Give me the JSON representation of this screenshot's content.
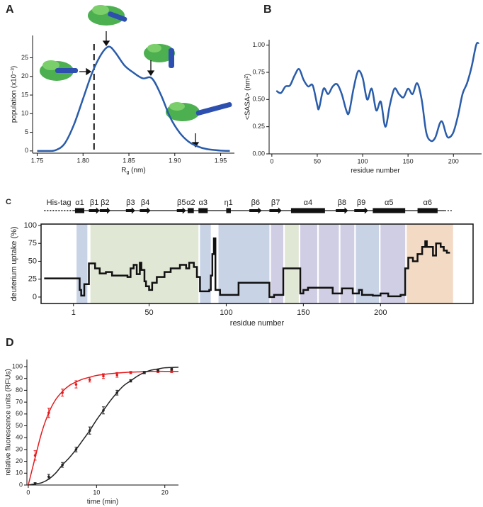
{
  "chart_data": [
    {
      "panel": "A",
      "type": "line",
      "color": "#2a5caa",
      "xlabel": {
        "main": "R",
        "sub": "g",
        "rest": " (nm)"
      },
      "ylabel": "population (x10⁻³)",
      "x": [
        1.75,
        1.76,
        1.77,
        1.78,
        1.79,
        1.8,
        1.81,
        1.82,
        1.828,
        1.835,
        1.845,
        1.855,
        1.865,
        1.875,
        1.885,
        1.895,
        1.905,
        1.915,
        1.925,
        1.935,
        1.95,
        1.96
      ],
      "values": [
        0,
        0,
        0.2,
        2,
        7,
        14,
        21,
        26,
        28,
        26.5,
        23,
        21,
        19.5,
        19.5,
        15,
        9,
        5,
        2.5,
        1.2,
        0.5,
        0.1,
        0
      ],
      "vline": 1.812,
      "xlim": [
        1.745,
        1.965
      ],
      "xticks": [
        1.75,
        {
          "value": 1.8,
          "label": "1.80"
        },
        1.85,
        {
          "value": 1.9,
          "label": "1.90"
        },
        1.95
      ],
      "ylim": [
        -0.6,
        31
      ],
      "yticks": [
        0,
        5,
        10,
        15,
        20,
        25
      ]
    },
    {
      "panel": "B",
      "type": "line",
      "color": "#2a5caa",
      "xlabel": "residue number",
      "ylabel": "<SASA> (nm²)",
      "x": [
        5,
        10,
        15,
        20,
        25,
        30,
        35,
        40,
        45,
        50,
        52,
        57,
        62,
        67,
        72,
        77,
        82,
        85,
        90,
        95,
        100,
        105,
        110,
        115,
        120,
        125,
        130,
        135,
        140,
        145,
        150,
        155,
        160,
        165,
        170,
        175,
        180,
        185,
        188,
        192,
        195,
        200,
        205,
        210,
        215,
        220,
        225,
        228
      ],
      "values": [
        0.58,
        0.56,
        0.62,
        0.63,
        0.72,
        0.78,
        0.68,
        0.62,
        0.63,
        0.45,
        0.42,
        0.6,
        0.55,
        0.62,
        0.64,
        0.55,
        0.4,
        0.38,
        0.6,
        0.76,
        0.7,
        0.5,
        0.6,
        0.4,
        0.48,
        0.25,
        0.45,
        0.6,
        0.55,
        0.52,
        0.6,
        0.55,
        0.65,
        0.5,
        0.2,
        0.12,
        0.15,
        0.28,
        0.29,
        0.18,
        0.15,
        0.2,
        0.35,
        0.55,
        0.65,
        0.8,
        1,
        1.02
      ],
      "xlim": [
        -3,
        231
      ],
      "xticks": [
        0,
        50,
        100,
        150,
        200
      ],
      "ylim": [
        0,
        1.05
      ],
      "yticks": [
        {
          "value": 0,
          "label": "0.00"
        },
        0.25,
        {
          "value": 0.5,
          "label": "0.50"
        },
        0.75,
        {
          "value": 1,
          "label": "1.00"
        }
      ]
    },
    {
      "panel": "C",
      "type": "step",
      "color": "#111111",
      "xlabel": "residue number",
      "ylabel": "deuterium uptake (%)",
      "x": [
        -18,
        5,
        6,
        8,
        11,
        15,
        18,
        22,
        26,
        36,
        38,
        40,
        42,
        44,
        45,
        47,
        48,
        50,
        52,
        55,
        60,
        64,
        70,
        74,
        76,
        79,
        81,
        83,
        89,
        90,
        91,
        92,
        93,
        96,
        108,
        128,
        131,
        137,
        148,
        150,
        153,
        169,
        175,
        182,
        186,
        188,
        195,
        200,
        205,
        213,
        216,
        218,
        221,
        224,
        227,
        229,
        230,
        234,
        236,
        239,
        241,
        243,
        245
      ],
      "values": [
        26,
        10,
        2,
        18,
        47,
        40,
        33,
        35,
        30,
        28,
        40,
        45,
        32,
        48,
        38,
        22,
        15,
        10,
        20,
        28,
        35,
        40,
        45,
        40,
        48,
        42,
        28,
        8,
        10,
        30,
        60,
        82,
        10,
        3,
        20,
        0,
        3,
        40,
        5,
        10,
        13,
        5,
        12,
        5,
        10,
        3,
        2,
        5,
        1,
        3,
        40,
        55,
        50,
        60,
        70,
        78,
        70,
        58,
        75,
        70,
        65,
        62,
        62
      ],
      "regions": [
        {
          "start": 3,
          "end": 10,
          "color": "#c9d3e6"
        },
        {
          "start": 12,
          "end": 82,
          "color": "#e0e7d4"
        },
        {
          "start": 83,
          "end": 90,
          "color": "#c9d3e6"
        },
        {
          "start": 95,
          "end": 128,
          "color": "#c9d3e6"
        },
        {
          "start": 129,
          "end": 137,
          "color": "#d0cee4"
        },
        {
          "start": 138,
          "end": 147,
          "color": "#e0e7d4"
        },
        {
          "start": 148,
          "end": 159,
          "color": "#d0cee4"
        },
        {
          "start": 160,
          "end": 173,
          "color": "#d0cee4"
        },
        {
          "start": 174,
          "end": 183,
          "color": "#d0cee4"
        },
        {
          "start": 184,
          "end": 199,
          "color": "#c9d3e6"
        },
        {
          "start": 200,
          "end": 216,
          "color": "#d0cee4"
        },
        {
          "start": 217,
          "end": 247,
          "color": "#f3dac4"
        }
      ],
      "structure": [
        {
          "label": "His-tag",
          "start": -18,
          "end": 1,
          "kind": "tag"
        },
        {
          "label": "α1",
          "start": 2,
          "end": 8,
          "kind": "helix"
        },
        {
          "label": "β1",
          "start": 11,
          "end": 18,
          "kind": "strand"
        },
        {
          "label": "β2",
          "start": 18,
          "end": 25,
          "kind": "strand"
        },
        {
          "label": "β3",
          "start": 35,
          "end": 41,
          "kind": "strand"
        },
        {
          "label": "β4",
          "start": 44,
          "end": 51,
          "kind": "strand"
        },
        {
          "label": "β5",
          "start": 68,
          "end": 74,
          "kind": "strand"
        },
        {
          "label": "α2",
          "start": 75,
          "end": 79,
          "kind": "helix"
        },
        {
          "label": "α3",
          "start": 82,
          "end": 88,
          "kind": "helix"
        },
        {
          "label": "η1",
          "start": 100,
          "end": 103,
          "kind": "helix"
        },
        {
          "label": "β6",
          "start": 115,
          "end": 123,
          "kind": "strand"
        },
        {
          "label": "β7",
          "start": 128,
          "end": 136,
          "kind": "strand"
        },
        {
          "label": "α4",
          "start": 142,
          "end": 164,
          "kind": "helix"
        },
        {
          "label": "β8",
          "start": 171,
          "end": 179,
          "kind": "strand"
        },
        {
          "label": "β9",
          "start": 183,
          "end": 192,
          "kind": "strand"
        },
        {
          "label": "α5",
          "start": 195,
          "end": 216,
          "kind": "helix"
        },
        {
          "label": "α6",
          "start": 224,
          "end": 237,
          "kind": "helix"
        }
      ],
      "xlim": [
        -20,
        260
      ],
      "xticks": [
        1,
        50,
        100,
        150,
        200
      ],
      "ylim": [
        -9,
        102
      ],
      "yticks": [
        0,
        25,
        50,
        75,
        100
      ]
    },
    {
      "panel": "D",
      "type": "scatter",
      "xlabel": "time (min)",
      "ylabel": "relative fluorescence units (RFUs)",
      "series": [
        {
          "color": "#e41a1c",
          "x": [
            1,
            3,
            5,
            7,
            9,
            11,
            13,
            15,
            17,
            19,
            21
          ],
          "values": [
            25,
            61,
            78,
            85,
            89,
            92,
            93,
            95,
            95,
            96,
            96
          ],
          "errors": [
            4,
            4,
            3,
            3,
            2,
            2,
            2,
            1,
            1,
            1,
            1
          ],
          "fit_x": [
            0,
            1,
            2,
            3,
            4,
            5,
            6,
            7,
            8,
            9,
            10,
            12,
            14,
            16,
            18,
            20,
            22
          ],
          "fit_values": [
            0,
            23,
            45,
            61,
            72,
            79,
            84,
            87,
            89.5,
            91,
            92.5,
            94,
            95,
            95.5,
            96,
            96,
            96
          ]
        },
        {
          "color": "#222222",
          "x": [
            1,
            3,
            5,
            7,
            9,
            11,
            13,
            15,
            17,
            19,
            21
          ],
          "values": [
            1,
            7,
            17,
            30,
            46,
            63,
            78,
            88,
            95,
            97,
            98
          ],
          "errors": [
            1,
            2,
            2,
            2,
            3,
            3,
            2,
            1,
            1,
            1,
            1
          ],
          "fit_x": [
            0,
            1,
            2,
            3,
            4,
            5,
            6,
            7,
            8,
            9,
            10,
            11,
            12,
            13,
            14,
            15,
            16,
            17,
            18,
            19,
            20,
            22
          ],
          "fit_values": [
            0,
            1,
            2,
            5,
            10,
            17,
            23,
            30,
            38,
            46,
            55,
            63,
            71,
            78,
            84,
            88,
            92,
            95,
            97,
            98,
            99,
            99.5
          ]
        }
      ],
      "xlim": [
        -0.2,
        22
      ],
      "xticks": [
        0,
        10,
        20
      ],
      "ylim": [
        0,
        106
      ],
      "yticks": [
        0,
        10,
        20,
        30,
        40,
        50,
        60,
        70,
        80,
        90,
        100
      ]
    }
  ]
}
